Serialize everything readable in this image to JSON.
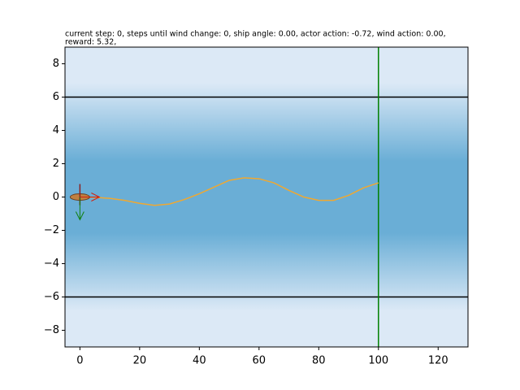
{
  "chart_data": {
    "type": "line",
    "title_lines": [
      "current step: 0, steps until wind change: 0, ship angle: 0.00, actor action: -0.72, wind action: 0.00,",
      "reward: 5.32,"
    ],
    "x": [
      0,
      5,
      10,
      15,
      20,
      25,
      30,
      35,
      40,
      45,
      50,
      55,
      60,
      65,
      70,
      75,
      80,
      85,
      90,
      95,
      100
    ],
    "series": [
      {
        "color": "#f0a830",
        "values": [
          0,
          -0.02,
          -0.08,
          -0.2,
          -0.38,
          -0.5,
          -0.42,
          -0.15,
          0.2,
          0.6,
          1.0,
          1.15,
          1.1,
          0.85,
          0.4,
          0.0,
          -0.2,
          -0.2,
          0.1,
          0.55,
          0.85
        ]
      }
    ],
    "ship": {
      "x": 0,
      "y": 0
    },
    "hlines": [
      6,
      -6
    ],
    "hline_color": "#000000",
    "vlines": [
      100
    ],
    "vline_color": "#008000",
    "background_colors": [
      "#dce9f6",
      "#6aaed6"
    ],
    "xlim": [
      -5,
      130
    ],
    "ylim": [
      -9,
      9
    ],
    "xticks": [
      0,
      20,
      40,
      60,
      80,
      100,
      120
    ],
    "yticks": [
      {
        "value": -8,
        "label": "−8"
      },
      {
        "value": -6,
        "label": "−6"
      },
      {
        "value": -4,
        "label": "−4"
      },
      {
        "value": -2,
        "label": "−2"
      },
      0,
      2,
      4,
      6,
      8
    ]
  }
}
